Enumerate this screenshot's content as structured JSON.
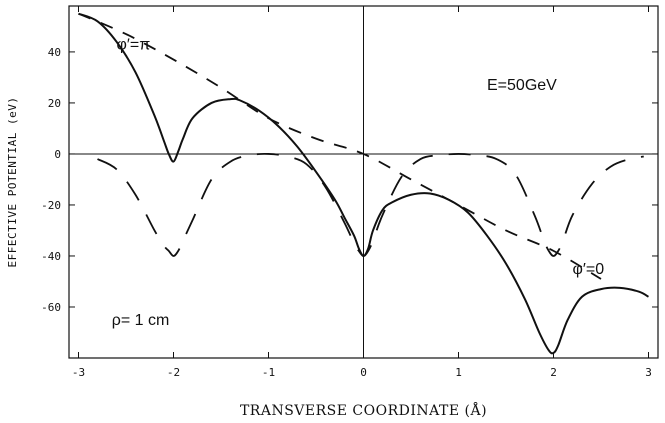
{
  "chart_data": {
    "type": "line",
    "title": "",
    "xlabel": "TRANSVERSE COORDINATE (Å)",
    "ylabel": "EFFECTIVE POTENTIAL   (eV)",
    "xlim": [
      -3.1,
      3.1
    ],
    "ylim": [
      -80,
      58
    ],
    "x_ticks": [
      -3,
      -2,
      -1,
      0,
      1,
      2,
      3
    ],
    "y_ticks": [
      -60,
      -40,
      -20,
      0,
      20,
      40
    ],
    "x_tick_labels": [
      "-3",
      "-2",
      "-1",
      "0",
      "1",
      "2",
      "3"
    ],
    "y_tick_labels": [
      "-60",
      "-40",
      "-20",
      "0",
      "20",
      "40"
    ],
    "grid": false,
    "annotations": [
      {
        "text": "E=50GeV",
        "x": 1.3,
        "y": 25
      },
      {
        "text": "φ′=π",
        "x": -2.6,
        "y": 41
      },
      {
        "text": "φ′=0",
        "x": 2.2,
        "y": -47
      },
      {
        "text": "ρ= 1 cm",
        "x": -2.65,
        "y": -67
      }
    ],
    "series": [
      {
        "style": "solid",
        "x": [
          -3.0,
          -2.8,
          -2.6,
          -2.4,
          -2.2,
          -2.1,
          -2.05,
          -2.0,
          -1.95,
          -1.9,
          -1.8,
          -1.6,
          -1.4,
          -1.3,
          -1.1,
          -0.9,
          -0.7,
          -0.5,
          -0.3,
          -0.2,
          -0.1,
          -0.05,
          0.0,
          0.05,
          0.1,
          0.2,
          0.3,
          0.5,
          0.7,
          0.9,
          1.1,
          1.3,
          1.5,
          1.7,
          1.85,
          1.95,
          2.0,
          2.05,
          2.15,
          2.3,
          2.5,
          2.7,
          2.9,
          3.0
        ],
        "y": [
          55,
          52,
          44,
          32,
          15,
          5,
          0,
          -3,
          1,
          6,
          14,
          20,
          21.5,
          21,
          17,
          11,
          3,
          -7,
          -18,
          -25,
          -32,
          -37,
          -40,
          -37,
          -30,
          -22,
          -19,
          -16,
          -15.5,
          -18,
          -23,
          -32,
          -43,
          -57,
          -70,
          -77,
          -78,
          -75,
          -65,
          -56,
          -53,
          -52.5,
          -54,
          -56
        ]
      },
      {
        "style": "long-dash",
        "x": [
          -2.8,
          -2.6,
          -2.4,
          -2.2,
          -2.1,
          -2.05,
          -2.0,
          -1.95,
          -1.9,
          -1.8,
          -1.6,
          -1.4,
          -1.2,
          -1.0,
          -0.8,
          -0.6,
          -0.4,
          -0.2,
          -0.1,
          -0.05,
          0.0,
          0.05,
          0.1,
          0.2,
          0.4,
          0.6,
          0.8,
          1.0,
          1.2,
          1.4,
          1.6,
          1.8,
          1.9,
          1.95,
          2.0,
          2.05,
          2.1,
          2.2,
          2.4,
          2.6,
          2.8,
          2.95
        ],
        "y": [
          -2,
          -6,
          -16,
          -30,
          -36,
          -38,
          -40,
          -38,
          -34,
          -26,
          -10,
          -3,
          -0.5,
          0,
          -1,
          -4,
          -13,
          -27,
          -35,
          -38,
          -40,
          -38,
          -34,
          -24,
          -9,
          -2,
          -0.5,
          0,
          -0.5,
          -2,
          -8,
          -24,
          -34,
          -38,
          -40,
          -38,
          -34,
          -24,
          -12,
          -5,
          -2,
          -1
        ]
      },
      {
        "style": "short-dash",
        "x": [
          -3.0,
          -2.5,
          -2.0,
          -1.5,
          -1.0,
          -0.5,
          0.0,
          0.5,
          1.0,
          1.5,
          2.0,
          2.5
        ],
        "y": [
          55,
          47,
          37,
          26,
          14,
          6,
          0,
          -10,
          -20,
          -30,
          -38,
          -49
        ]
      }
    ]
  }
}
